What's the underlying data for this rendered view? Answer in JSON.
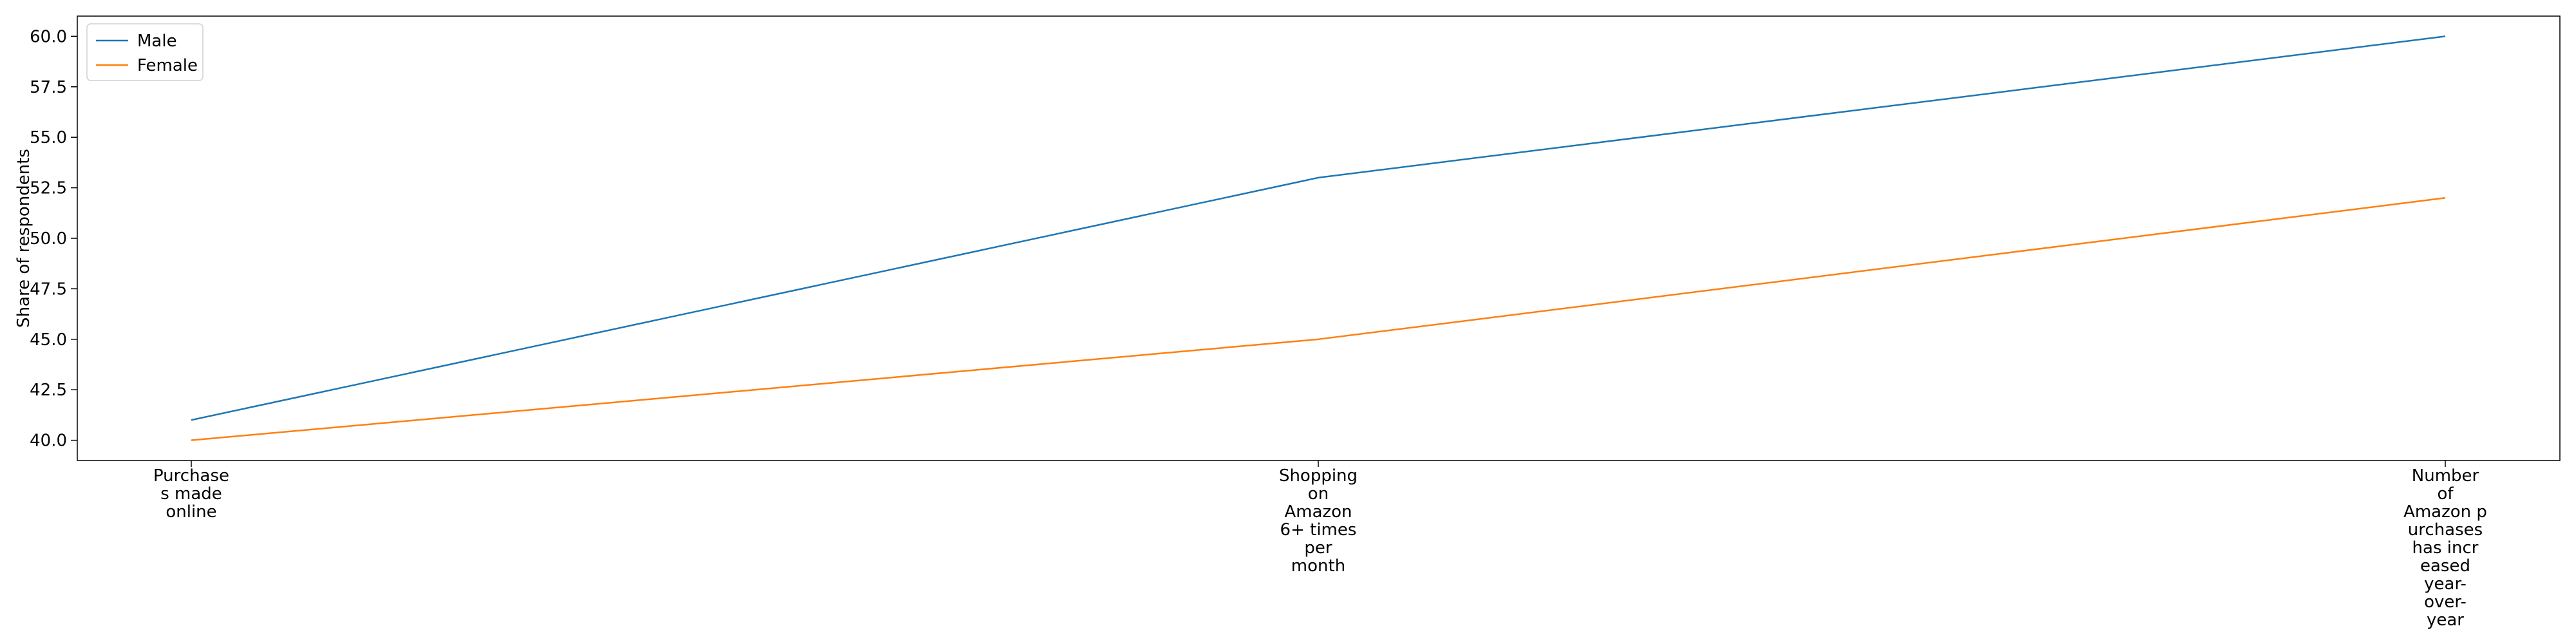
{
  "chart_data": {
    "type": "line",
    "title": "",
    "xlabel": "",
    "ylabel": "Share of respondents",
    "categories": [
      "Purchases made online",
      "Shopping on Amazon 6+ times per month",
      "Number of Amazon purchases has increased year-over-year"
    ],
    "category_label_lines": [
      [
        "Purchase",
        "s made",
        "online"
      ],
      [
        "Shopping",
        "on",
        "Amazon",
        "6+ times",
        "per",
        "month"
      ],
      [
        "Number",
        "of",
        "Amazon p",
        "urchases",
        "has incr",
        "eased",
        "year-",
        "over-",
        "year"
      ]
    ],
    "series": [
      {
        "name": "Male",
        "values": [
          41,
          53,
          60
        ],
        "color": "#1f77b4"
      },
      {
        "name": "Female",
        "values": [
          40,
          45,
          52
        ],
        "color": "#ff7f0e"
      }
    ],
    "ylim": [
      39,
      61
    ],
    "yticks": [
      40.0,
      42.5,
      45.0,
      47.5,
      50.0,
      52.5,
      55.0,
      57.5,
      60.0
    ],
    "ytick_labels": [
      "40.0",
      "42.5",
      "45.0",
      "47.5",
      "50.0",
      "52.5",
      "55.0",
      "57.5",
      "60.0"
    ],
    "grid": false,
    "legend_position": "top-left"
  }
}
